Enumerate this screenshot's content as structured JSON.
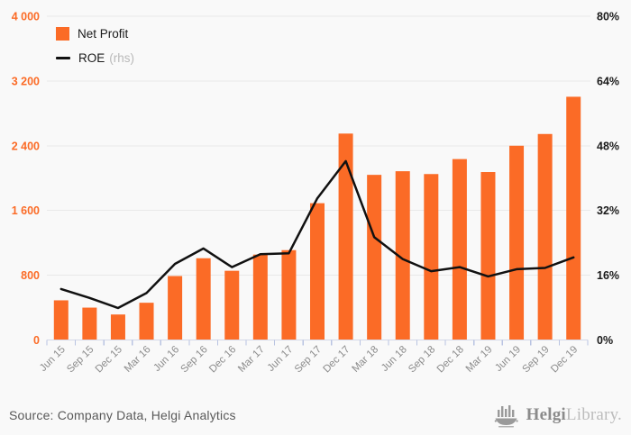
{
  "page": {
    "background": "#f9f9f9",
    "accent": "#fb6b26"
  },
  "legend": {
    "net_profit_label": "Net Profit",
    "roe_label": "ROE",
    "roe_suffix": "(rhs)"
  },
  "footer": {
    "source": "Source: Company Data, Helgi Analytics",
    "logo_bold": "Helgi",
    "logo_light": "Library."
  },
  "chart_data": {
    "type": "bar",
    "title": "",
    "grid": true,
    "legend_position": "top-left",
    "categories": [
      "Jun 15",
      "Sep 15",
      "Dec 15",
      "Mar 16",
      "Jun 16",
      "Sep 16",
      "Dec 16",
      "Mar 17",
      "Jun 17",
      "Sep 17",
      "Dec 17",
      "Mar 18",
      "Jun 18",
      "Sep 18",
      "Dec 18",
      "Mar 19",
      "Jun 19",
      "Sep 19",
      "Dec 19"
    ],
    "series": [
      {
        "name": "Net Profit",
        "type": "bar",
        "axis": "left",
        "color": "#fb6b26",
        "values": [
          490,
          400,
          315,
          460,
          790,
          1010,
          855,
          1055,
          1110,
          1690,
          2550,
          2040,
          2085,
          2050,
          2235,
          2075,
          2400,
          2545,
          3005
        ]
      },
      {
        "name": "ROE",
        "type": "line",
        "axis": "right",
        "color": "#111111",
        "values": [
          12.6,
          10.4,
          7.9,
          11.6,
          18.8,
          22.6,
          18.0,
          21.2,
          21.4,
          35.0,
          44.2,
          25.4,
          20.0,
          17.0,
          18.0,
          15.7,
          17.5,
          17.8,
          20.4
        ]
      }
    ],
    "left_axis": {
      "min": 0,
      "max": 4000,
      "ticks": [
        "0",
        "800",
        "1 600",
        "2 400",
        "3 200",
        "4 000"
      ],
      "color": "#fb6b26"
    },
    "right_axis": {
      "min": 0,
      "max": 80,
      "ticks": [
        "0%",
        "16%",
        "32%",
        "48%",
        "64%",
        "80%"
      ],
      "color": "#1a1a1a"
    },
    "x_axis": {
      "label_color": "#8c8c8c",
      "line_color": "#d4d9e8",
      "tick_color": "#b9c4e2",
      "grid_color": "#e9e9e9"
    }
  }
}
